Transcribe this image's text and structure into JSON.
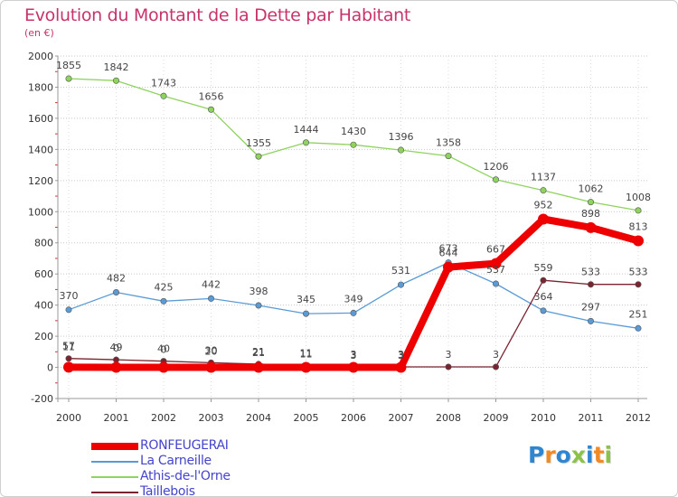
{
  "title": "Evolution du Montant de la Dette par Habitant",
  "subtitle": "(en €)",
  "logo": {
    "text": "Proxiti",
    "colors": [
      "#2e86d0",
      "#f08a24",
      "#2e86d0",
      "#8bc34a",
      "#2e86d0",
      "#f08a24",
      "#8bc34a"
    ]
  },
  "chart_data": {
    "type": "line",
    "title": "Evolution du Montant de la Dette par Habitant",
    "ylabel": "(en €)",
    "xlabel": "",
    "x": [
      "2000",
      "2001",
      "2002",
      "2003",
      "2004",
      "2005",
      "2006",
      "2007",
      "2008",
      "2009",
      "2010",
      "2011",
      "2012"
    ],
    "ylim": [
      -200,
      2000
    ],
    "yticks": [
      -200,
      0,
      200,
      400,
      600,
      800,
      1000,
      1200,
      1400,
      1600,
      1800,
      2000
    ],
    "grid": "horizontal dotted",
    "legend_position": "bottom-left",
    "series": [
      {
        "name": "RONFEUGERAI",
        "color": "#ee0000",
        "emphasis": true,
        "values": [
          1,
          0,
          0,
          0,
          0,
          0,
          0,
          0,
          644,
          667,
          952,
          898,
          813
        ],
        "labels": [
          "",
          "",
          "",
          "",
          "",
          "",
          "",
          "",
          "644",
          "667",
          "952",
          "898",
          "813"
        ]
      },
      {
        "name": "La Carneille",
        "color": "#5b9bd5",
        "values": [
          370,
          482,
          425,
          442,
          398,
          345,
          349,
          531,
          673,
          537,
          364,
          297,
          251
        ],
        "labels": [
          "370",
          "482",
          "425",
          "442",
          "398",
          "345",
          "349",
          "531",
          "673",
          "537",
          "364",
          "297",
          "251"
        ]
      },
      {
        "name": "Athis-de-l'Orne",
        "color": "#8fd35f",
        "values": [
          1855,
          1842,
          1743,
          1656,
          1355,
          1444,
          1430,
          1396,
          1358,
          1206,
          1137,
          1062,
          1008
        ],
        "labels": [
          "1855",
          "1842",
          "1743",
          "1656",
          "1355",
          "1444",
          "1430",
          "1396",
          "1358",
          "1206",
          "1137",
          "1062",
          "1008"
        ]
      },
      {
        "name": "Taillebois",
        "color": "#7a2430",
        "values": [
          57,
          49,
          40,
          30,
          21,
          11,
          3,
          3,
          3,
          3,
          559,
          533,
          533
        ],
        "labels": [
          "57",
          "49",
          "40",
          "30",
          "21",
          "11",
          "3",
          "3",
          "3",
          "3",
          "559",
          "533",
          "533"
        ]
      }
    ],
    "overlay_labels": [
      "11",
      "0",
      "0",
      "20",
      "21",
      "11",
      "3",
      "3"
    ]
  }
}
